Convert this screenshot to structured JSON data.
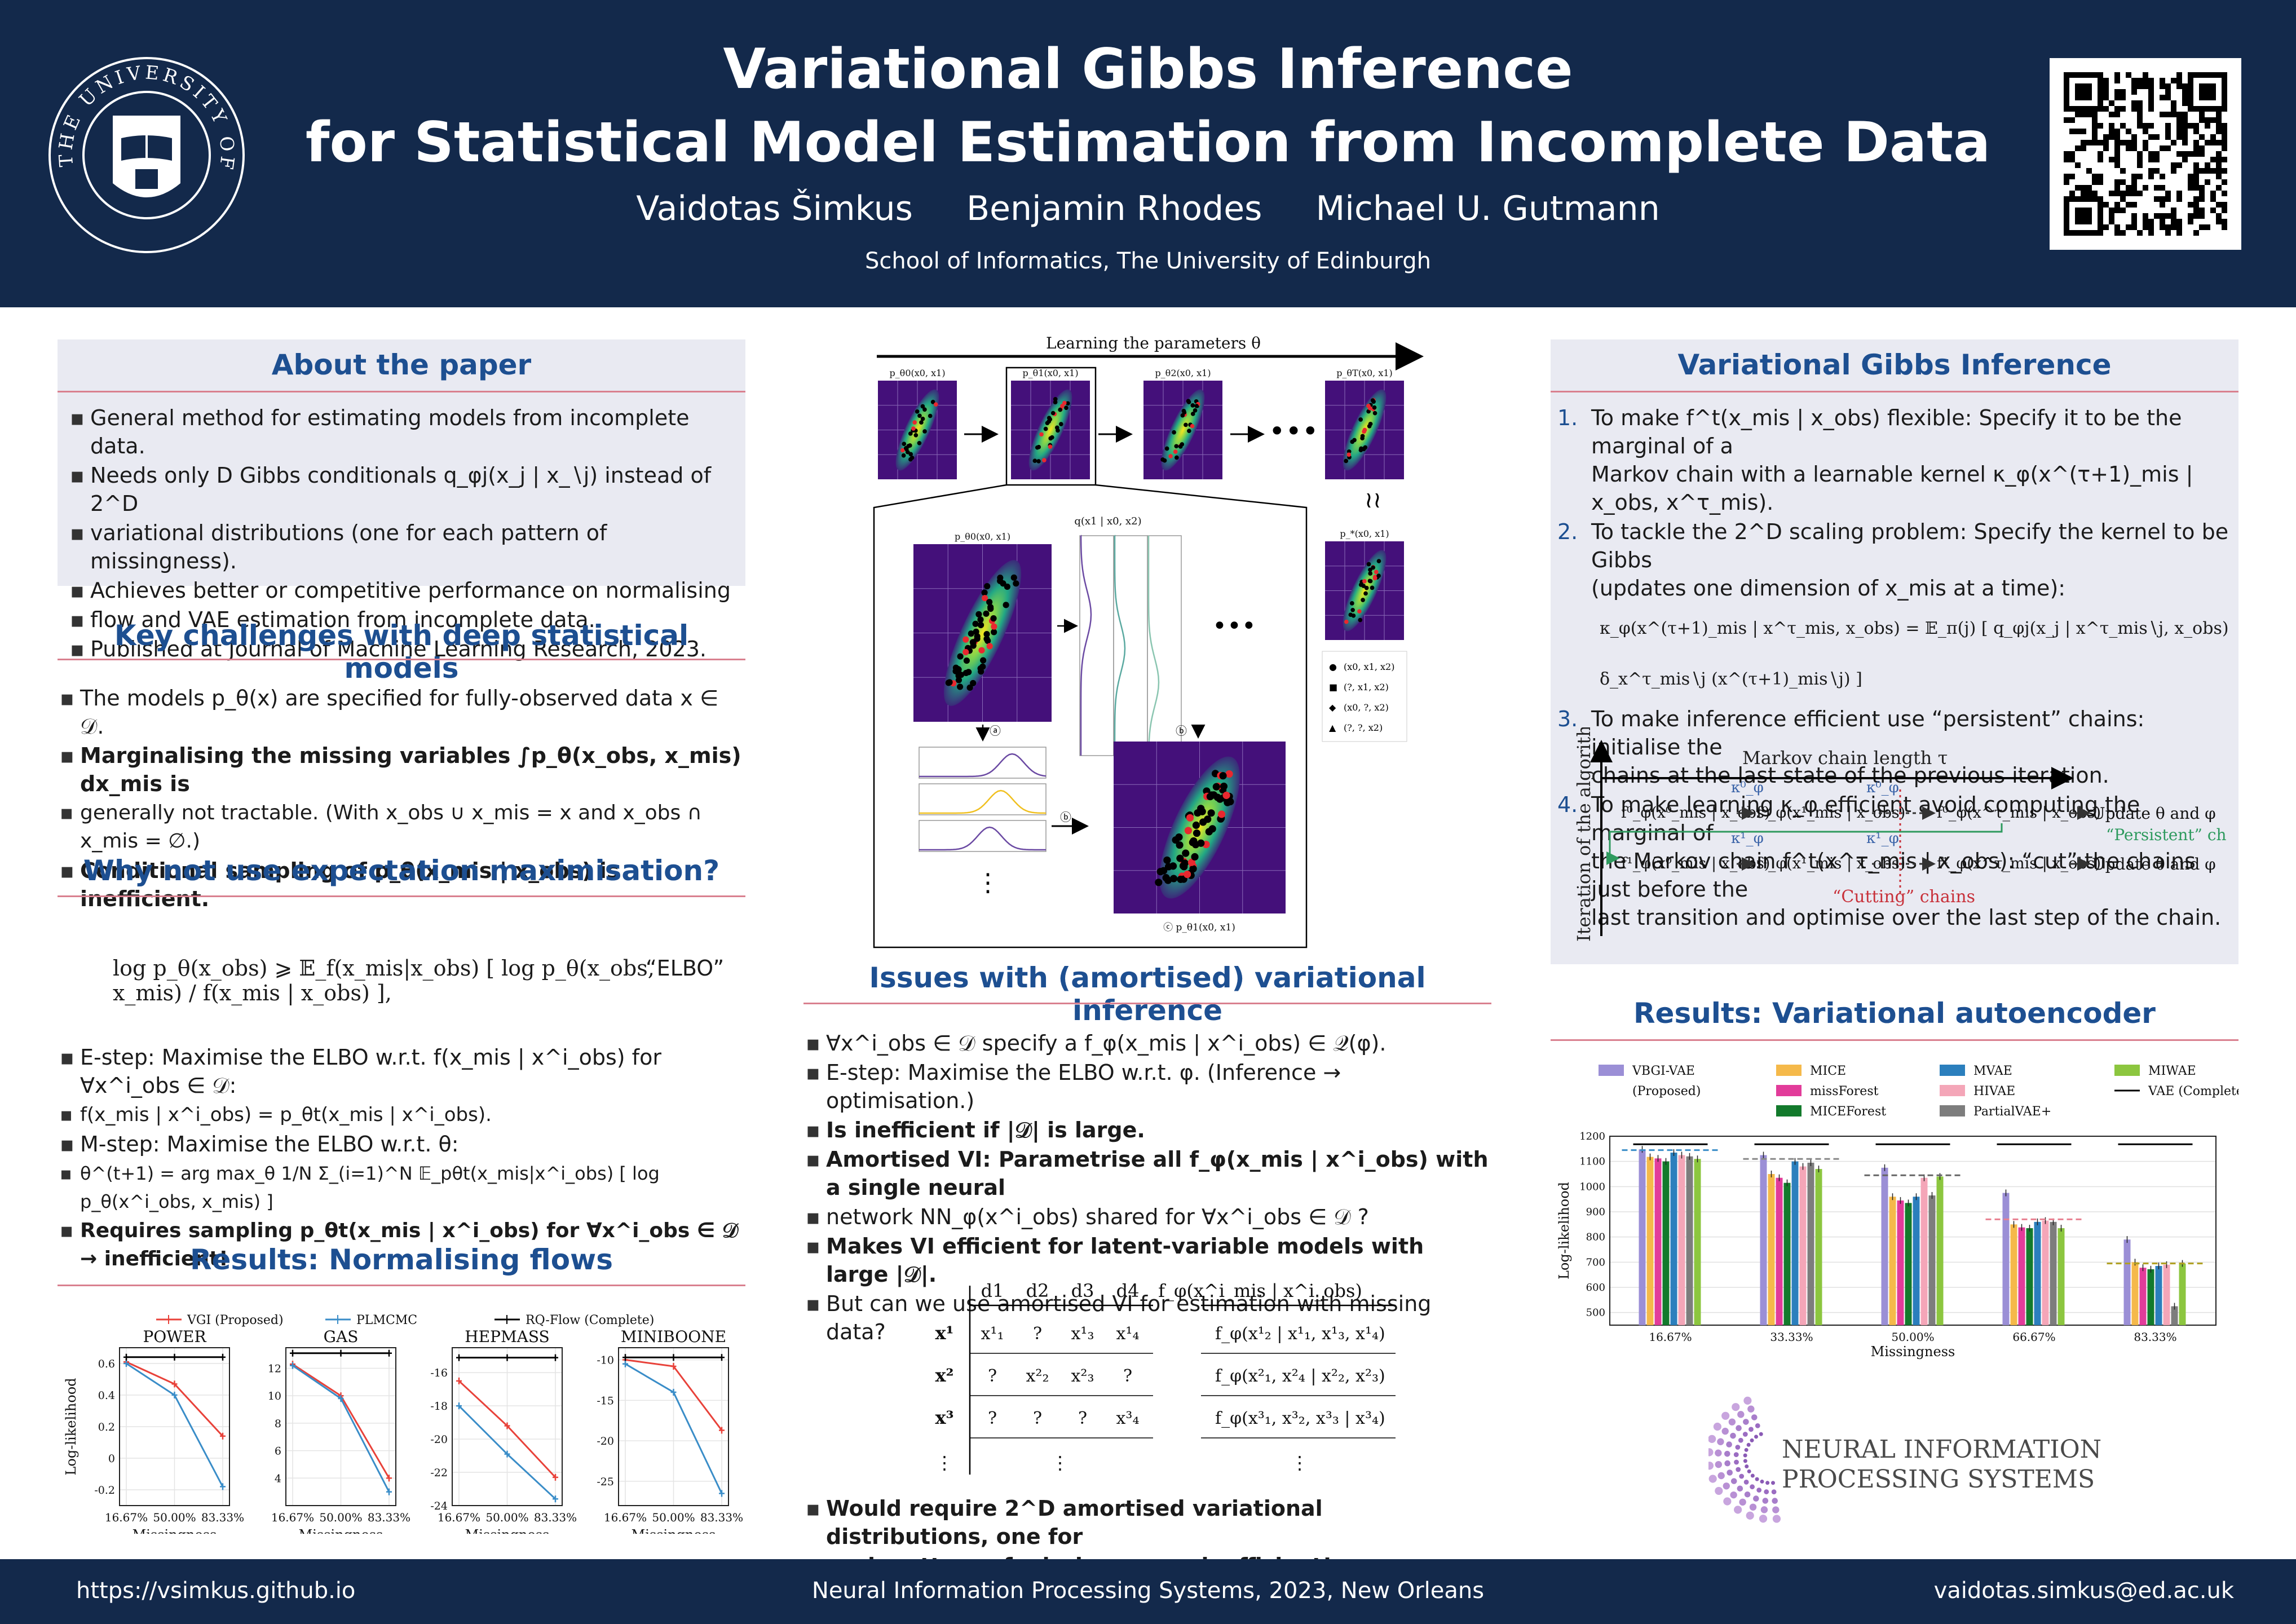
{
  "header": {
    "title_line1": "Variational Gibbs Inference",
    "title_line2": "for Statistical Model Estimation from Incomplete Data",
    "authors": [
      "Vaidotas Šimkus",
      "Benjamin Rhodes",
      "Michael U. Gutmann"
    ],
    "affiliation": "School of Informatics, The University of Edinburgh",
    "logo_text": "THE UNIVERSITY OF EDINBURGH"
  },
  "footer": {
    "left": "https://vsimkus.github.io",
    "center": "Neural Information Processing Systems, 2023, New Orleans",
    "right": "vaidotas.simkus@ed.ac.uk"
  },
  "about": {
    "title": "About the paper",
    "items": [
      "General method for estimating models from incomplete data.",
      "Needs only D Gibbs conditionals q_φj(x_j | x_∖j) instead of 2^D",
      "variational distributions (one for each pattern of missingness).",
      "Achieves better or competitive performance on normalising",
      "flow and VAE estimation from incomplete data.",
      "Published at Journal of Machine Learning Research, 2023."
    ]
  },
  "challenges": {
    "title": "Key challenges with deep statistical models",
    "items": [
      "The models p_θ(x) are specified for fully-observed data x ∈ 𝒟.",
      "Marginalising the missing variables ∫p_θ(x_obs, x_mis) dx_mis is",
      "generally not tractable. (With x_obs ∪ x_mis = x and x_obs ∩ x_mis = ∅.)",
      "Conditional sampling of p_θ(x_mis | x_obs) is inefficient."
    ]
  },
  "em": {
    "title": "Why not use expectation maximisation?",
    "elbo_formula": "log p_θ(x_obs) ⩾ 𝔼_f(x_mis|x_obs) [ log p_θ(x_obs, x_mis) / f(x_mis | x_obs) ],",
    "elbo_label": "“ELBO”",
    "items": [
      "E-step: Maximise the ELBO w.r.t. f(x_mis | x^i_obs) for ∀x^i_obs ∈ 𝒟:",
      "f(x_mis | x^i_obs) = p_θt(x_mis | x^i_obs).",
      "M-step: Maximise the ELBO w.r.t. θ:",
      "θ^(t+1) = arg max_θ 1/N Σ_(i=1)^N 𝔼_pθt(x_mis|x^i_obs) [ log p_θ(x^i_obs, x_mis) ]",
      "Requires sampling p_θt(x_mis | x^i_obs) for ∀x^i_obs ∈ 𝒟 → inefficient!"
    ]
  },
  "nf": {
    "title": "Results: Normalising flows",
    "legend": [
      "VGI (Proposed)",
      "PLMCMC",
      "RQ-Flow (Complete)"
    ],
    "ylabel": "Log-likelihood",
    "xlabel": "Missingness",
    "xticks": [
      "16.67%",
      "50.00%",
      "83.33%"
    ]
  },
  "middle": {
    "learning_label": "Learning the parameters θ",
    "panel_labels": [
      "p_θ0(x0, x1)",
      "p_θ1(x0, x1)",
      "p_θ2(x0, x1)",
      "p_θT(x0, x1)",
      "p_*(x0, x1)"
    ],
    "zoom_labels": [
      "p_θ0(x0, x1)",
      "q(x1 | x0, x2)",
      "p_θ1(x0, x1)"
    ],
    "legend": [
      "(x0, x1, x2)",
      "(?, x1, x2)",
      "(x0, ?, x2)",
      "(?, ?, x2)"
    ],
    "step_labels": [
      "ⓐ",
      "ⓑ",
      "ⓒ"
    ]
  },
  "issues": {
    "title": "Issues with (amortised) variational inference",
    "items": [
      "∀x^i_obs ∈ 𝒟 specify a f_φ(x_mis | x^i_obs) ∈ 𝒬(φ).",
      "E-step: Maximise the ELBO w.r.t. φ. (Inference → optimisation.)",
      "Is inefficient if |𝒟| is large.",
      "Amortised VI: Parametrise all f_φ(x_mis | x^i_obs) with a single neural",
      "network NN_φ(x^i_obs) shared for ∀x^i_obs ∈ 𝒟 ?",
      "Makes VI efficient for latent-variable models with large |𝒟|.",
      "But can we use amortised VI for estimation with missing data?",
      "Would require 2^D amortised variational distributions, one for",
      "each pattern of missingness → inefficient!"
    ],
    "table": {
      "headers": [
        "d1",
        "d2",
        "d3",
        "d4"
      ],
      "rows": [
        {
          "label": "x¹",
          "cells": [
            "x¹₁",
            "?",
            "x¹₃",
            "x¹₄"
          ],
          "f": "f_φ(x¹₂ | x¹₁, x¹₃, x¹₄)"
        },
        {
          "label": "x²",
          "cells": [
            "?",
            "x²₂",
            "x²₃",
            "?"
          ],
          "f": "f_φ(x²₁, x²₄ | x²₂, x²₃)"
        },
        {
          "label": "x³",
          "cells": [
            "?",
            "?",
            "?",
            "x³₄"
          ],
          "f": "f_φ(x³₁, x³₂, x³₃ | x³₄)"
        }
      ],
      "f_header": "f_φ(x^i_mis | x^i_obs)",
      "dots": "⋮"
    }
  },
  "vgi": {
    "title": "Variational Gibbs Inference",
    "items": [
      {
        "n": "1.",
        "lines": [
          "To make f^t(x_mis | x_obs) flexible: Specify it to be the marginal of a",
          "Markov chain with a learnable kernel κ_φ(x^(τ+1)_mis | x_obs, x^τ_mis)."
        ]
      },
      {
        "n": "2.",
        "lines": [
          "To tackle the 2^D scaling problem: Specify the kernel to be Gibbs",
          "(updates one dimension of x_mis at a time):"
        ]
      },
      {
        "n": "3.",
        "lines": [
          "To make inference efficient use “persistent” chains: initialise the",
          "chains at the last state of the previous iteration."
        ]
      },
      {
        "n": "4.",
        "lines": [
          "To make learning κ_φ efficient avoid computing the marginal of",
          "the Markov chain f^t(x^τ_mis | x_obs): “cut” the chains just before the",
          "last transition and optimise over the last step of the chain."
        ]
      }
    ],
    "kernel_formula": "κ_φ(x^(τ+1)_mis | x^τ_mis, x_obs) = 𝔼_π(j) [ q_φj(x_j | x^τ_mis∖j, x_obs) δ_x^τ_mis∖j (x^(τ+1)_mis∖j) ]",
    "diagram": {
      "y_axis": "Iteration of the algorithm t",
      "x_axis": "Markov chain length τ",
      "row1": [
        "f⁰_φ(x⁰_mis | x_obs)",
        "f⁰_φ(x¹_mis | x_obs)",
        "f⁰_φ(x^τ_mis | x_obs)"
      ],
      "row2": [
        "f¹_φ(x⁰_mis | x_obs)",
        "f¹_φ(x¹_mis | x_obs)",
        "f¹_φ(x^τ_mis | x_obs)"
      ],
      "kappa0": "κ⁰_φ",
      "kappa1": "κ¹_φ",
      "update": "Update θ and φ",
      "persistent": "“Persistent” chains",
      "cutting": "“Cutting” chains"
    }
  },
  "vae": {
    "title": "Results: Variational autoencoder",
    "logo_line1": "NEURAL INFORMATION",
    "logo_line2": "PROCESSING SYSTEMS"
  },
  "chart_data": [
    {
      "type": "line",
      "title": "POWER",
      "xlabel": "Missingness",
      "ylabel": "Log-likelihood",
      "x": [
        "16.67%",
        "50.00%",
        "83.33%"
      ],
      "ylim": [
        -0.3,
        0.7
      ],
      "yticks": [
        0.6,
        0.4,
        0.2,
        0.0,
        -0.2
      ],
      "series": [
        {
          "name": "VGI (Proposed)",
          "color": "#e8423a",
          "values": [
            0.61,
            0.47,
            0.14
          ]
        },
        {
          "name": "PLMCMC",
          "color": "#3a8dc8",
          "values": [
            0.6,
            0.4,
            -0.18
          ]
        },
        {
          "name": "RQ-Flow (Complete)",
          "color": "#000000",
          "values": [
            0.64,
            0.64,
            0.64
          ]
        }
      ]
    },
    {
      "type": "line",
      "title": "GAS",
      "xlabel": "Missingness",
      "ylabel": "",
      "x": [
        "16.67%",
        "50.00%",
        "83.33%"
      ],
      "ylim": [
        2,
        13.5
      ],
      "yticks": [
        12,
        10,
        8,
        6,
        4
      ],
      "series": [
        {
          "name": "VGI (Proposed)",
          "color": "#e8423a",
          "values": [
            12.3,
            10.0,
            4.0
          ]
        },
        {
          "name": "PLMCMC",
          "color": "#3a8dc8",
          "values": [
            12.2,
            9.8,
            3.0
          ]
        },
        {
          "name": "RQ-Flow (Complete)",
          "color": "#000000",
          "values": [
            13.1,
            13.1,
            13.1
          ]
        }
      ]
    },
    {
      "type": "line",
      "title": "HEPMASS",
      "xlabel": "Missingness",
      "ylabel": "",
      "x": [
        "16.67%",
        "50.00%",
        "83.33%"
      ],
      "ylim": [
        -24,
        -14.5
      ],
      "yticks": [
        -16,
        -18,
        -20,
        -22,
        -24
      ],
      "series": [
        {
          "name": "VGI (Proposed)",
          "color": "#e8423a",
          "values": [
            -16.5,
            -19.2,
            -22.3
          ]
        },
        {
          "name": "PLMCMC",
          "color": "#3a8dc8",
          "values": [
            -18.0,
            -20.9,
            -23.6
          ]
        },
        {
          "name": "RQ-Flow (Complete)",
          "color": "#000000",
          "values": [
            -15.1,
            -15.1,
            -15.1
          ]
        }
      ]
    },
    {
      "type": "line",
      "title": "MINIBOONE",
      "xlabel": "Missingness",
      "ylabel": "",
      "x": [
        "16.67%",
        "50.00%",
        "83.33%"
      ],
      "ylim": [
        -28,
        -8.5
      ],
      "yticks": [
        -10,
        -15,
        -20,
        -25
      ],
      "series": [
        {
          "name": "VGI (Proposed)",
          "color": "#e8423a",
          "values": [
            -10.0,
            -10.8,
            -18.7
          ]
        },
        {
          "name": "PLMCMC",
          "color": "#3a8dc8",
          "values": [
            -10.5,
            -14.0,
            -26.5
          ]
        },
        {
          "name": "RQ-Flow (Complete)",
          "color": "#000000",
          "values": [
            -9.7,
            -9.7,
            -9.7
          ]
        }
      ]
    },
    {
      "type": "bar",
      "title": "",
      "xlabel": "Missingness",
      "ylabel": "Log-likelihood",
      "categories": [
        "16.67%",
        "33.33%",
        "50.00%",
        "66.67%",
        "83.33%"
      ],
      "ylim": [
        450,
        1200
      ],
      "yticks": [
        500,
        600,
        700,
        800,
        900,
        1000,
        1100,
        1200
      ],
      "legend": [
        "VBGI-VAE",
        "(Proposed)",
        "MICE",
        "missForest",
        "MICEForest",
        "MVAE",
        "HIVAE",
        "PartialVAE+",
        "MIWAE",
        "VAE (Complete)"
      ],
      "series": [
        {
          "name": "VBGI-VAE",
          "color": "#9b8fd6",
          "values": [
            1148,
            1125,
            1075,
            975,
            790
          ]
        },
        {
          "name": "MICE",
          "color": "#f5b94a",
          "values": [
            1118,
            1050,
            960,
            850,
            700
          ]
        },
        {
          "name": "missForest",
          "color": "#e23c9a",
          "values": [
            1112,
            1035,
            945,
            838,
            678
          ]
        },
        {
          "name": "MICEForest",
          "color": "#137a2c",
          "values": [
            1100,
            1015,
            935,
            835,
            672
          ]
        },
        {
          "name": "MVAE",
          "color": "#2b7fbd",
          "values": [
            1135,
            1100,
            960,
            860,
            685
          ]
        },
        {
          "name": "HIVAE",
          "color": "#f4a6b8",
          "values": [
            1125,
            1080,
            1035,
            865,
            690
          ]
        },
        {
          "name": "PartialVAE+",
          "color": "#7d7d7d",
          "values": [
            1120,
            1095,
            965,
            860,
            525
          ]
        },
        {
          "name": "MIWAE",
          "color": "#8cc63f",
          "values": [
            1110,
            1070,
            1040,
            835,
            695
          ]
        },
        {
          "name": "VAE (Complete)",
          "color": "#000000",
          "values": [
            1168,
            1168,
            1168,
            1168,
            1168
          ]
        }
      ]
    }
  ]
}
